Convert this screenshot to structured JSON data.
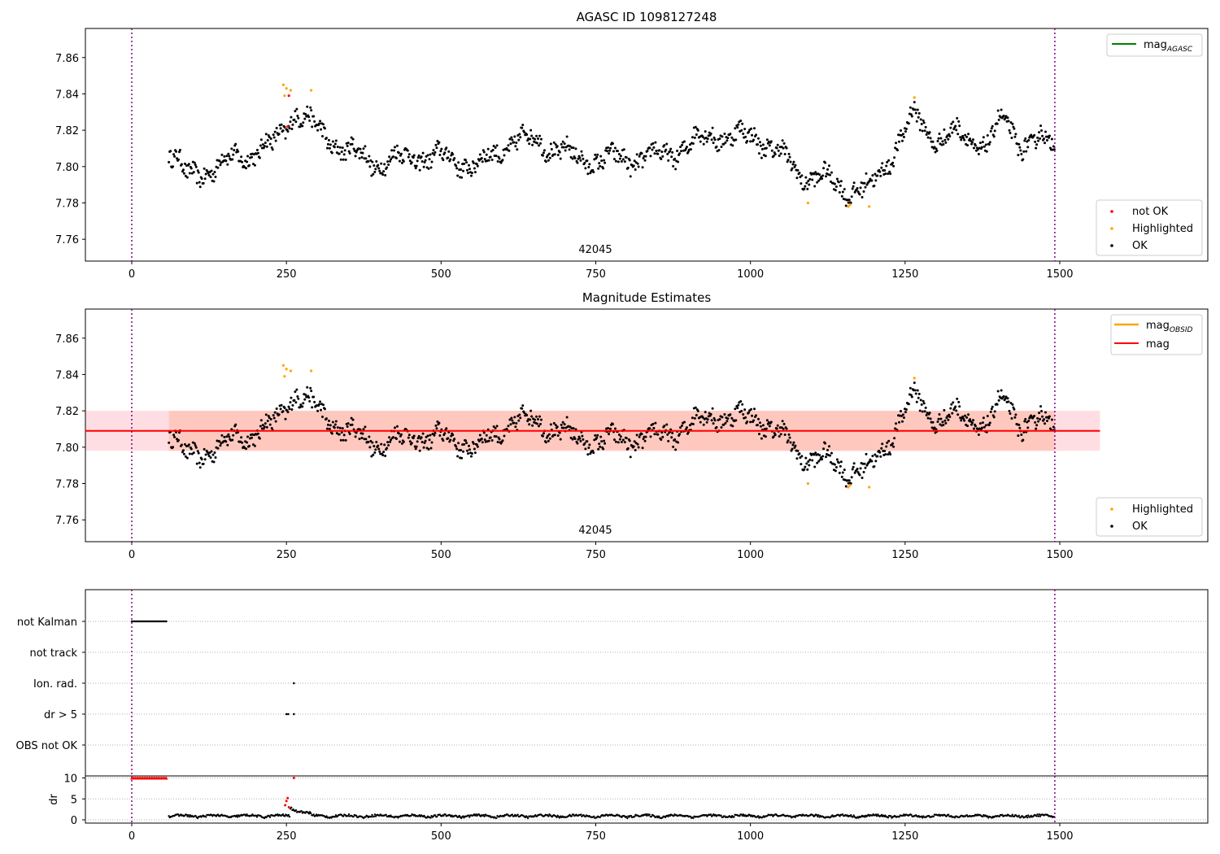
{
  "chart_data": [
    {
      "type": "scatter",
      "title": "AGASC ID 1098127248",
      "xlim": [
        -75,
        1725
      ],
      "ylim": [
        7.748,
        7.876
      ],
      "xticks": [
        0,
        250,
        500,
        750,
        1000,
        1250,
        1500
      ],
      "xtick_labels": [
        "0",
        "250",
        "500",
        "750",
        "1000",
        "1250",
        "1500"
      ],
      "yticks": [
        7.76,
        7.78,
        7.8,
        7.82,
        7.84,
        7.86
      ],
      "ytick_labels": [
        "7.76",
        "7.78",
        "7.80",
        "7.82",
        "7.84",
        "7.86"
      ],
      "obsid_label": "42045",
      "obs_boundaries": [
        0,
        1492
      ],
      "legend_top": [
        {
          "name": "mag_AGASC",
          "text": "mag",
          "sub": "AGASC",
          "color": "#008000"
        }
      ],
      "legend_bottom": [
        {
          "name": "not OK",
          "color": "#ff0000"
        },
        {
          "name": "Highlighted",
          "color": "#ffa500"
        },
        {
          "name": "OK",
          "color": "#000000"
        }
      ],
      "series_ok": {
        "x_start": 60,
        "x_end": 1492,
        "step": 1.3,
        "approx": true,
        "base_mag": 7.808
      },
      "highlighted": [
        [
          245,
          7.845
        ],
        [
          247,
          7.839
        ],
        [
          250,
          7.843
        ],
        [
          257,
          7.842
        ],
        [
          290,
          7.842
        ],
        [
          1093,
          7.78
        ],
        [
          1158,
          7.778
        ],
        [
          1161,
          7.779
        ],
        [
          1192,
          7.778
        ],
        [
          1265,
          7.838
        ]
      ],
      "not_ok": [
        [
          252,
          7.822
        ],
        [
          254,
          7.839
        ]
      ]
    },
    {
      "type": "scatter",
      "title": "Magnitude Estimates",
      "xlim": [
        -75,
        1725
      ],
      "ylim": [
        7.748,
        7.876
      ],
      "xticks": [
        0,
        250,
        500,
        750,
        1000,
        1250,
        1500
      ],
      "xtick_labels": [
        "0",
        "250",
        "500",
        "750",
        "1000",
        "1250",
        "1500"
      ],
      "yticks": [
        7.76,
        7.78,
        7.8,
        7.82,
        7.84,
        7.86
      ],
      "ytick_labels": [
        "7.76",
        "7.78",
        "7.80",
        "7.82",
        "7.84",
        "7.86"
      ],
      "obsid_label": "42045",
      "obs_boundaries": [
        0,
        1492
      ],
      "mag_line": 7.809,
      "mag_band": [
        7.798,
        7.82
      ],
      "obsid_band_x": [
        -75,
        1565
      ],
      "legend_top": [
        {
          "name": "mag_OBSID",
          "text": "mag",
          "sub": "OBSID",
          "color": "#ffa500"
        },
        {
          "name": "mag",
          "text": "mag",
          "sub": "",
          "color": "#ff0000"
        }
      ],
      "legend_bottom": [
        {
          "name": "Highlighted",
          "color": "#ffa500"
        },
        {
          "name": "OK",
          "color": "#000000"
        }
      ]
    },
    {
      "type": "scatter",
      "title": "",
      "categories": [
        "not Kalman",
        "not track",
        "Ion. rad.",
        "dr > 5",
        "OBS not OK"
      ],
      "flags": {
        "not Kalman": {
          "x_range": [
            0,
            57
          ]
        },
        "Ion. rad.": {
          "x": [
            262
          ]
        },
        "dr > 5": {
          "x": [
            250,
            253,
            262
          ]
        }
      },
      "obs_boundaries": [
        0,
        1492
      ]
    },
    {
      "type": "scatter",
      "ylabel": "dr",
      "yticks": [
        0,
        5,
        10
      ],
      "ytick_labels": [
        "0",
        "5",
        "10"
      ],
      "xticks": [
        0,
        250,
        500,
        750,
        1000,
        1250,
        1500
      ],
      "xtick_labels": [
        "0",
        "250",
        "500",
        "750",
        "1000",
        "1250",
        "1500"
      ],
      "clip_value": 10,
      "red_clipped_x_range": [
        0,
        57
      ],
      "red_points": [
        [
          248,
          3.5
        ],
        [
          250,
          4.5
        ],
        [
          252,
          5.2
        ],
        [
          254,
          3.0
        ],
        [
          262,
          10
        ]
      ],
      "obs_boundaries": [
        0,
        1492
      ]
    }
  ],
  "colors": {
    "ok": "#000000",
    "highlighted": "#ffa500",
    "not_ok": "#ff0000",
    "agasc": "#008000",
    "boundary": "#800080",
    "band": "#ffb6c1",
    "band_inner": "#ffa07a"
  }
}
